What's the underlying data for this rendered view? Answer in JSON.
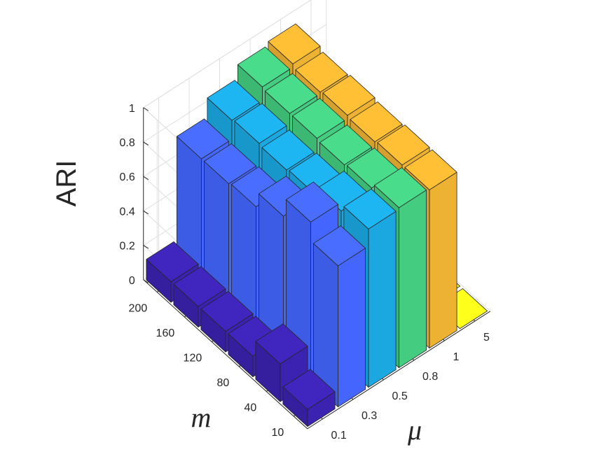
{
  "chart_data": {
    "type": "bar3d",
    "zlabel": "ARI",
    "xlabel": "m",
    "ylabel": "μ",
    "zlim": [
      0,
      1
    ],
    "z_ticks": [
      "0",
      "0.2",
      "0.4",
      "0.6",
      "0.8",
      "1"
    ],
    "m_categories": [
      "10",
      "40",
      "80",
      "120",
      "160",
      "200"
    ],
    "mu_categories": [
      "0.1",
      "0.3",
      "0.5",
      "0.8",
      "1",
      "5"
    ],
    "series_colors": [
      "#3b22b0",
      "#4466ff",
      "#1ba8e0",
      "#44cc80",
      "#eeb232",
      "#f7f71a"
    ],
    "series": [
      {
        "values": [
          0.1,
          0.22,
          0.12,
          0.12,
          0.12,
          0.12
        ]
      },
      {
        "values": [
          0.82,
          0.93,
          0.82,
          0.73,
          0.72,
          0.72
        ]
      },
      {
        "values": [
          0.92,
          0.88,
          0.84,
          0.83,
          0.84,
          0.83
        ]
      },
      {
        "values": [
          0.93,
          0.9,
          0.89,
          0.9,
          0.9,
          0.91
        ]
      },
      {
        "values": [
          0.92,
          0.92,
          0.91,
          0.92,
          0.91,
          0.93
        ]
      },
      {
        "values": [
          0.0,
          0.0,
          0.0,
          0.0,
          0.01,
          0.02
        ]
      }
    ]
  }
}
